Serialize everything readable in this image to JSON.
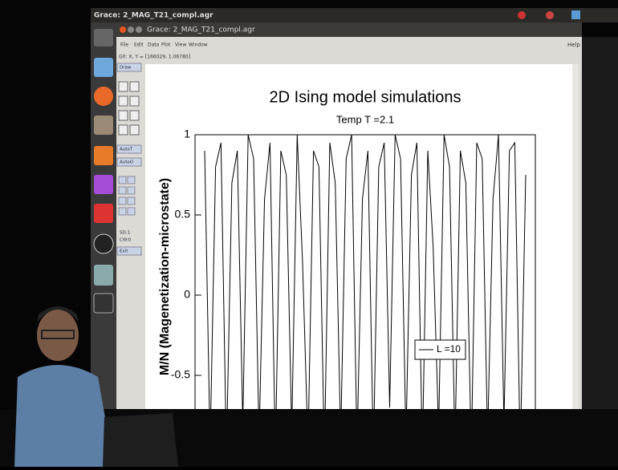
{
  "top_bar": {
    "title": "Grace: 2_MAG_T21_compl.agr"
  },
  "window": {
    "title": "Grace: 2_MAG_T21_compl.agr",
    "menu": [
      "File",
      "Edit",
      "Data",
      "Plot",
      "View",
      "Window"
    ],
    "help": "Help",
    "status": "G0: X, Y = [166029, 1.06780]",
    "tools": [
      "Draw",
      "AutoT",
      "AutoO",
      "SD:1",
      "CW:0",
      "Exit"
    ]
  },
  "chart_data": {
    "type": "line",
    "title": "2D Ising model simulations",
    "subtitle": "Temp T =2.1",
    "ylabel": "M/N  (Magenetization-microstate)",
    "ylim": [
      -1,
      1
    ],
    "yticks": [
      1,
      0.5,
      0,
      -0.5
    ],
    "series": [
      {
        "name": "L =10",
        "color": "#000000",
        "values": [
          0.9,
          -0.95,
          0.8,
          0.95,
          -1,
          0.7,
          0.9,
          -0.8,
          1,
          0.85,
          -0.9,
          0.6,
          0.95,
          -1,
          0.9,
          0.75,
          -0.85,
          1,
          0.2,
          -0.95,
          0.9,
          0.8,
          -1,
          0.95,
          0.7,
          -0.9,
          0.85,
          1,
          -0.95,
          0.6,
          0.9,
          -1,
          0.8,
          0.95,
          -0.7,
          1,
          0.85,
          -0.9,
          0.75,
          0.95,
          -1,
          0.9,
          0.3,
          -0.85,
          1,
          0.8,
          -0.95,
          0.9,
          0.7,
          -1,
          0.95,
          0.85,
          -0.9,
          0.6,
          1,
          -0.8,
          0.9,
          0.95,
          -1,
          0.75
        ]
      }
    ]
  }
}
